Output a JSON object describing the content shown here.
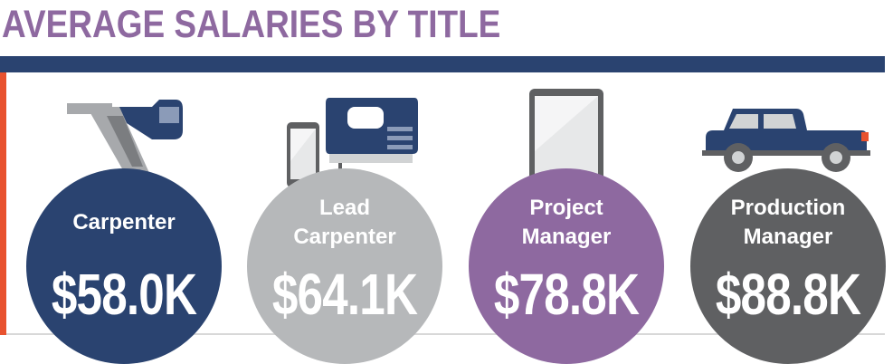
{
  "title": "AVERAGE SALARIES BY TITLE",
  "colors": {
    "title": "#8e69a0",
    "bar": "#2a4370",
    "accent": "#e8522f",
    "carpenter": "#2a4370",
    "lead_carpenter": "#b6b8ba",
    "project_manager": "#8e69a0",
    "production_manager": "#5f6062"
  },
  "chart_data": {
    "type": "bar",
    "title": "AVERAGE SALARIES BY TITLE",
    "categories": [
      "Carpenter",
      "Lead Carpenter",
      "Project Manager",
      "Production Manager"
    ],
    "values": [
      58.0,
      64.1,
      78.8,
      88.8
    ],
    "unit": "$K",
    "labels": [
      {
        "line1": "Carpenter",
        "line2": "",
        "value": "$58.0K",
        "icon": "nail-gun-icon"
      },
      {
        "line1": "Lead",
        "line2": "Carpenter",
        "value": "$64.1K",
        "icon": "jigsaw-and-phone-icon"
      },
      {
        "line1": "Project",
        "line2": "Manager",
        "value": "$78.8K",
        "icon": "tablet-icon"
      },
      {
        "line1": "Production",
        "line2": "Manager",
        "value": "$88.8K",
        "icon": "pickup-truck-icon"
      }
    ]
  }
}
